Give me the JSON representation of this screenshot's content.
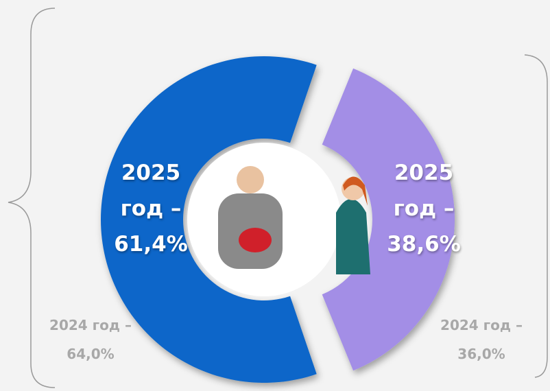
{
  "chart_data": {
    "type": "donut",
    "values": [
      61.4,
      38.6
    ],
    "value_labels": [
      "2025 год – 61,4%",
      "2025 год – 38,6%"
    ],
    "colors": [
      "#0a66c9",
      "#a38ee6"
    ],
    "annotations": [
      "2024 год – 64,0%",
      "2024 год – 36,0%"
    ]
  }
}
